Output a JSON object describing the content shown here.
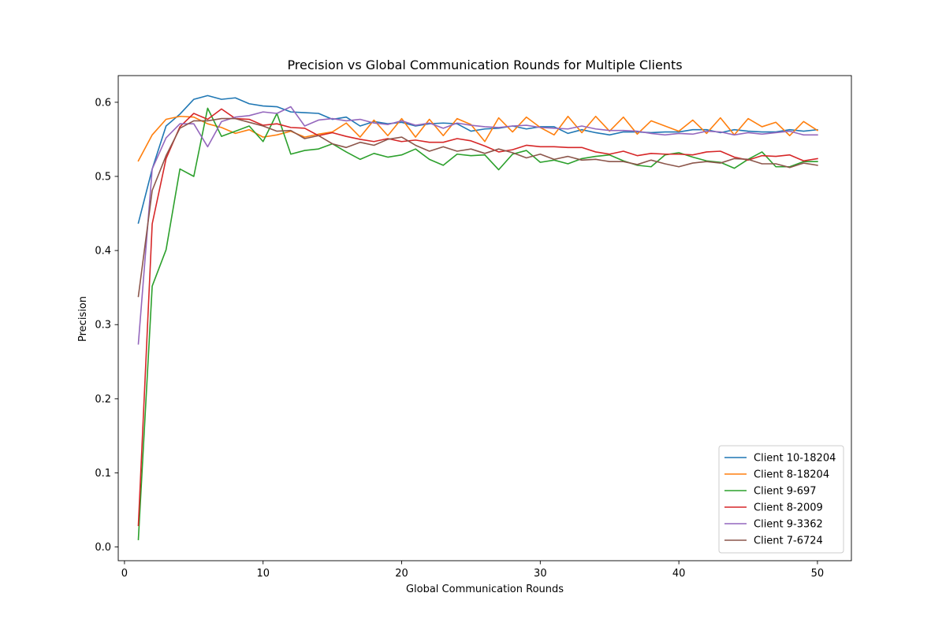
{
  "chart_data": {
    "type": "line",
    "title": "Precision vs Global Communication Rounds for Multiple Clients",
    "xlabel": "Global Communication Rounds",
    "ylabel": "Precision",
    "xlim": [
      -0.45,
      52.45
    ],
    "ylim": [
      -0.0185,
      0.636
    ],
    "xticks": [
      0,
      10,
      20,
      30,
      40,
      50
    ],
    "yticks": [
      0.0,
      0.1,
      0.2,
      0.3,
      0.4,
      0.5,
      0.6
    ],
    "xtick_labels": [
      "0",
      "10",
      "20",
      "30",
      "40",
      "50"
    ],
    "ytick_labels": [
      "0.0",
      "0.1",
      "0.2",
      "0.3",
      "0.4",
      "0.5",
      "0.6"
    ],
    "grid": false,
    "legend_position": "lower-right",
    "x": [
      1,
      2,
      3,
      4,
      5,
      6,
      7,
      8,
      9,
      10,
      11,
      12,
      13,
      14,
      15,
      16,
      17,
      18,
      19,
      20,
      21,
      22,
      23,
      24,
      25,
      26,
      27,
      28,
      29,
      30,
      31,
      32,
      33,
      34,
      35,
      36,
      37,
      38,
      39,
      40,
      41,
      42,
      43,
      44,
      45,
      46,
      47,
      48,
      49,
      50
    ],
    "series": [
      {
        "name": "Client 10-18204",
        "color": "#1f77b4",
        "values": [
          0.437,
          0.51,
          0.568,
          0.584,
          0.604,
          0.609,
          0.604,
          0.606,
          0.598,
          0.595,
          0.594,
          0.587,
          0.586,
          0.585,
          0.577,
          0.58,
          0.568,
          0.574,
          0.571,
          0.573,
          0.568,
          0.571,
          0.572,
          0.571,
          0.561,
          0.564,
          0.565,
          0.568,
          0.564,
          0.567,
          0.567,
          0.558,
          0.563,
          0.559,
          0.556,
          0.56,
          0.56,
          0.559,
          0.56,
          0.56,
          0.563,
          0.563,
          0.559,
          0.563,
          0.561,
          0.56,
          0.56,
          0.563,
          0.561,
          0.563
        ]
      },
      {
        "name": "Client 8-18204",
        "color": "#ff7f0e",
        "values": [
          0.521,
          0.556,
          0.577,
          0.581,
          0.58,
          0.571,
          0.566,
          0.558,
          0.563,
          0.553,
          0.556,
          0.561,
          0.553,
          0.557,
          0.56,
          0.572,
          0.553,
          0.576,
          0.555,
          0.578,
          0.553,
          0.577,
          0.555,
          0.578,
          0.57,
          0.547,
          0.579,
          0.56,
          0.58,
          0.566,
          0.556,
          0.581,
          0.559,
          0.581,
          0.561,
          0.58,
          0.557,
          0.575,
          0.568,
          0.561,
          0.576,
          0.558,
          0.579,
          0.556,
          0.578,
          0.567,
          0.573,
          0.555,
          0.574,
          0.562
        ]
      },
      {
        "name": "Client 9-697",
        "color": "#2ca02c",
        "values": [
          0.01,
          0.352,
          0.401,
          0.51,
          0.5,
          0.592,
          0.554,
          0.561,
          0.568,
          0.547,
          0.585,
          0.53,
          0.535,
          0.537,
          0.544,
          0.533,
          0.523,
          0.531,
          0.526,
          0.529,
          0.537,
          0.523,
          0.515,
          0.53,
          0.528,
          0.529,
          0.509,
          0.53,
          0.535,
          0.519,
          0.522,
          0.517,
          0.524,
          0.527,
          0.529,
          0.521,
          0.515,
          0.513,
          0.529,
          0.532,
          0.526,
          0.521,
          0.519,
          0.511,
          0.523,
          0.533,
          0.513,
          0.513,
          0.52,
          0.52
        ]
      },
      {
        "name": "Client 8-2009",
        "color": "#d62728",
        "values": [
          0.029,
          0.436,
          0.524,
          0.567,
          0.585,
          0.577,
          0.591,
          0.578,
          0.577,
          0.569,
          0.571,
          0.566,
          0.565,
          0.555,
          0.559,
          0.554,
          0.55,
          0.547,
          0.551,
          0.547,
          0.549,
          0.546,
          0.546,
          0.551,
          0.548,
          0.541,
          0.533,
          0.536,
          0.542,
          0.54,
          0.54,
          0.539,
          0.539,
          0.533,
          0.53,
          0.534,
          0.528,
          0.531,
          0.53,
          0.53,
          0.529,
          0.533,
          0.534,
          0.526,
          0.522,
          0.528,
          0.527,
          0.529,
          0.521,
          0.524
        ]
      },
      {
        "name": "Client 9-3362",
        "color": "#9467bd",
        "values": [
          0.274,
          0.51,
          0.552,
          0.571,
          0.571,
          0.54,
          0.574,
          0.58,
          0.582,
          0.587,
          0.585,
          0.594,
          0.568,
          0.576,
          0.578,
          0.575,
          0.577,
          0.572,
          0.57,
          0.575,
          0.569,
          0.572,
          0.565,
          0.572,
          0.569,
          0.567,
          0.566,
          0.568,
          0.569,
          0.566,
          0.565,
          0.564,
          0.568,
          0.564,
          0.562,
          0.562,
          0.561,
          0.558,
          0.556,
          0.558,
          0.557,
          0.561,
          0.56,
          0.556,
          0.559,
          0.557,
          0.559,
          0.561,
          0.556,
          0.556
        ]
      },
      {
        "name": "Client 7-6724",
        "color": "#8c564b",
        "values": [
          0.338,
          0.481,
          0.528,
          0.565,
          0.575,
          0.575,
          0.578,
          0.578,
          0.573,
          0.568,
          0.561,
          0.562,
          0.551,
          0.555,
          0.544,
          0.539,
          0.546,
          0.542,
          0.55,
          0.553,
          0.542,
          0.534,
          0.54,
          0.534,
          0.537,
          0.531,
          0.537,
          0.532,
          0.525,
          0.53,
          0.523,
          0.527,
          0.522,
          0.523,
          0.52,
          0.52,
          0.516,
          0.522,
          0.517,
          0.513,
          0.518,
          0.52,
          0.518,
          0.524,
          0.523,
          0.517,
          0.517,
          0.512,
          0.518,
          0.515
        ]
      }
    ]
  }
}
